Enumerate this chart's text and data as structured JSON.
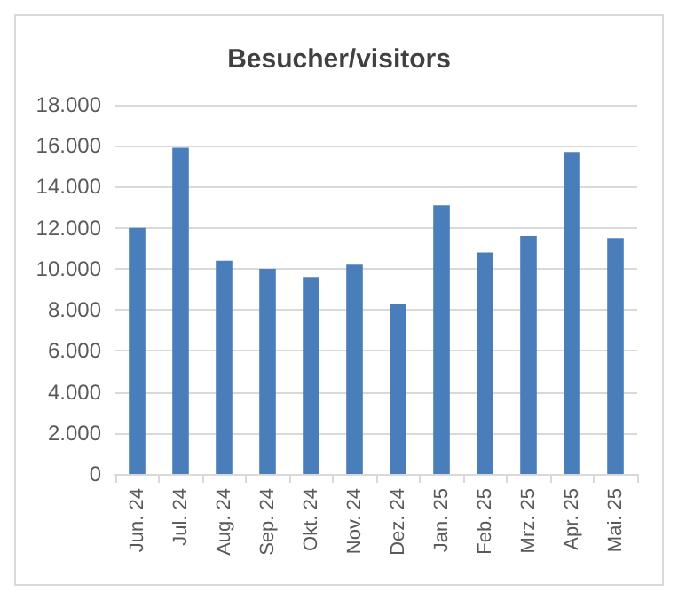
{
  "chart_data": {
    "type": "bar",
    "title": "Besucher/visitors",
    "categories": [
      "Jun. 24",
      "Jul. 24",
      "Aug. 24",
      "Sep. 24",
      "Okt. 24",
      "Nov. 24",
      "Dez. 24",
      "Jan. 25",
      "Feb. 25",
      "Mrz. 25",
      "Apr. 25",
      "Mai. 25"
    ],
    "values": [
      12000,
      15900,
      10400,
      10000,
      9600,
      10200,
      8300,
      13100,
      10800,
      11600,
      15700,
      11500
    ],
    "color": "#4a7ebb",
    "ylim": [
      0,
      18000
    ],
    "yticks": [
      0,
      {
        "value": 2000,
        "label": "2.000"
      },
      {
        "value": 4000,
        "label": "4.000"
      },
      {
        "value": 6000,
        "label": "6.000"
      },
      {
        "value": 8000,
        "label": "8.000"
      },
      {
        "value": 10000,
        "label": "10.000"
      },
      {
        "value": 12000,
        "label": "12.000"
      },
      {
        "value": 14000,
        "label": "14.000"
      },
      {
        "value": 16000,
        "label": "16.000"
      },
      {
        "value": 18000,
        "label": "18.000"
      }
    ],
    "grid": true
  }
}
